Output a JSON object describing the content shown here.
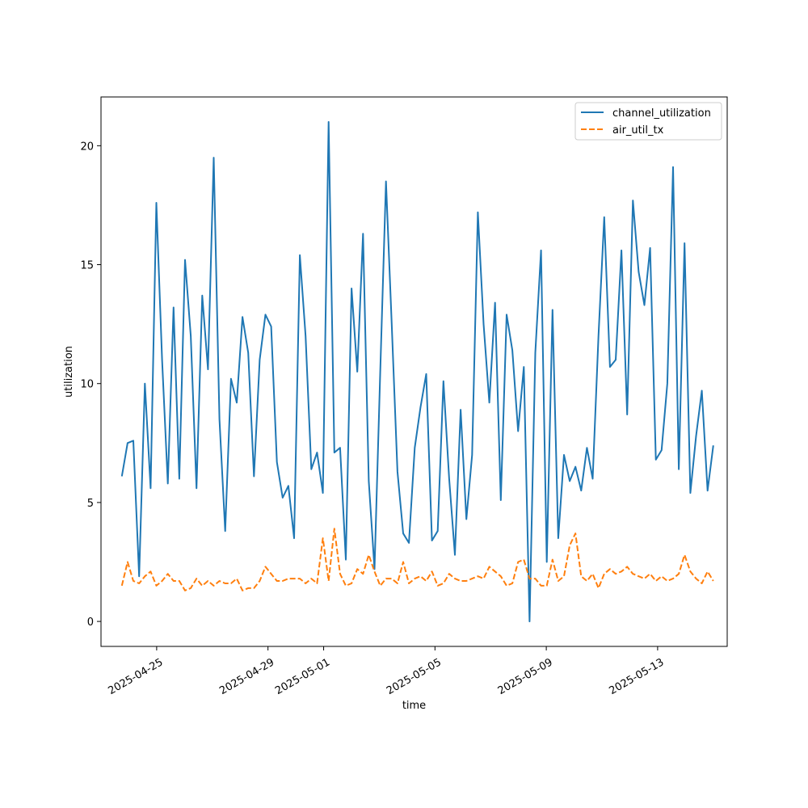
{
  "chart_data": {
    "type": "line",
    "xlabel": "time",
    "ylabel": "utilization",
    "x_start": "2025-04-23T18:00",
    "x_end": "2025-05-15T00:00",
    "xlim": [
      "2025-04-23T00:00",
      "2025-05-15T12:00"
    ],
    "ylim": [
      -1.05,
      22.05
    ],
    "x_ticks": [
      "2025-04-25",
      "2025-04-29",
      "2025-05-01",
      "2025-05-05",
      "2025-05-09",
      "2025-05-13"
    ],
    "y_ticks": [
      0,
      5,
      10,
      15,
      20
    ],
    "grid": false,
    "legend_position": "upper right",
    "colors": {
      "channel_utilization": "#1f77b4",
      "air_util_tx": "#ff7f0e"
    },
    "series": [
      {
        "name": "channel_utilization",
        "style": "solid",
        "values": [
          6.1,
          7.5,
          7.6,
          1.9,
          10.0,
          5.6,
          17.6,
          11.0,
          5.8,
          13.2,
          6.0,
          15.2,
          12.0,
          5.6,
          13.7,
          10.6,
          19.5,
          8.5,
          3.8,
          10.2,
          9.2,
          12.8,
          11.3,
          6.1,
          11.0,
          12.9,
          12.4,
          6.7,
          5.2,
          5.7,
          3.5,
          15.4,
          12.0,
          6.4,
          7.1,
          5.4,
          21.0,
          7.1,
          7.3,
          2.6,
          14.0,
          10.5,
          16.3,
          5.9,
          2.2,
          10.5,
          18.5,
          12.5,
          6.3,
          3.7,
          3.3,
          7.3,
          9.0,
          10.4,
          3.4,
          3.8,
          10.1,
          6.0,
          2.8,
          8.9,
          4.3,
          7.0,
          17.2,
          12.5,
          9.2,
          13.4,
          5.1,
          12.9,
          11.4,
          8.0,
          10.7,
          0.0,
          11.3,
          15.6,
          2.5,
          13.1,
          3.5,
          7.0,
          5.9,
          6.5,
          5.5,
          7.3,
          6.0,
          12.0,
          17.0,
          10.7,
          11.0,
          15.6,
          8.7,
          17.7,
          14.7,
          13.3,
          15.7,
          6.8,
          7.2,
          10.0,
          19.1,
          6.4,
          15.9,
          5.4,
          7.8,
          9.7,
          5.5,
          7.4
        ]
      },
      {
        "name": "air_util_tx",
        "style": "dashed",
        "values": [
          1.5,
          2.5,
          1.7,
          1.6,
          1.9,
          2.1,
          1.5,
          1.7,
          2.0,
          1.7,
          1.7,
          1.3,
          1.4,
          1.8,
          1.5,
          1.7,
          1.5,
          1.7,
          1.6,
          1.6,
          1.8,
          1.3,
          1.4,
          1.4,
          1.7,
          2.3,
          2.0,
          1.7,
          1.7,
          1.8,
          1.8,
          1.8,
          1.6,
          1.8,
          1.6,
          3.5,
          1.7,
          3.9,
          2.0,
          1.5,
          1.6,
          2.2,
          2.0,
          2.8,
          2.1,
          1.5,
          1.8,
          1.8,
          1.6,
          2.5,
          1.6,
          1.8,
          1.9,
          1.7,
          2.1,
          1.5,
          1.6,
          2.0,
          1.8,
          1.7,
          1.7,
          1.8,
          1.9,
          1.8,
          2.3,
          2.1,
          1.9,
          1.5,
          1.6,
          2.5,
          2.6,
          1.8,
          1.8,
          1.5,
          1.5,
          2.6,
          1.7,
          1.9,
          3.2,
          3.7,
          1.9,
          1.7,
          2.0,
          1.4,
          2.0,
          2.2,
          2.0,
          2.1,
          2.3,
          2.0,
          1.9,
          1.8,
          2.0,
          1.7,
          1.9,
          1.7,
          1.8,
          2.0,
          2.8,
          2.1,
          1.8,
          1.6,
          2.1,
          1.7
        ]
      }
    ]
  }
}
